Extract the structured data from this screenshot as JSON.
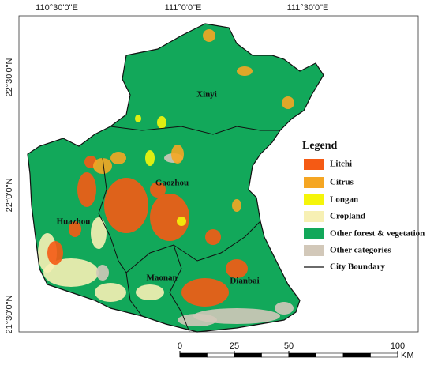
{
  "map": {
    "x_labels": [
      "110°30'0\"E",
      "111°0'0\"E",
      "111°30'0\"E"
    ],
    "y_labels": [
      "22°30'0\"N",
      "22°0'0\"N",
      "21°30'0\"N"
    ],
    "cities": [
      "Xinyi",
      "Gaozhou",
      "Huazhou",
      "Maonan",
      "Dianbai"
    ],
    "legend": {
      "title": "Legend",
      "items": [
        {
          "label": "Litchi",
          "color": "#f55a14"
        },
        {
          "label": "Citrus",
          "color": "#f5a623"
        },
        {
          "label": "Longan",
          "color": "#f5f50a"
        },
        {
          "label": "Cropland",
          "color": "#f7f0b4"
        },
        {
          "label": "Other forest & vegetation",
          "color": "#12a85a"
        },
        {
          "label": "Other categories",
          "color": "#d2c8b9"
        }
      ],
      "boundary": "City Boundary"
    },
    "scale_bar": {
      "ticks": [
        0,
        25,
        50,
        100
      ],
      "unit": "KM"
    }
  }
}
